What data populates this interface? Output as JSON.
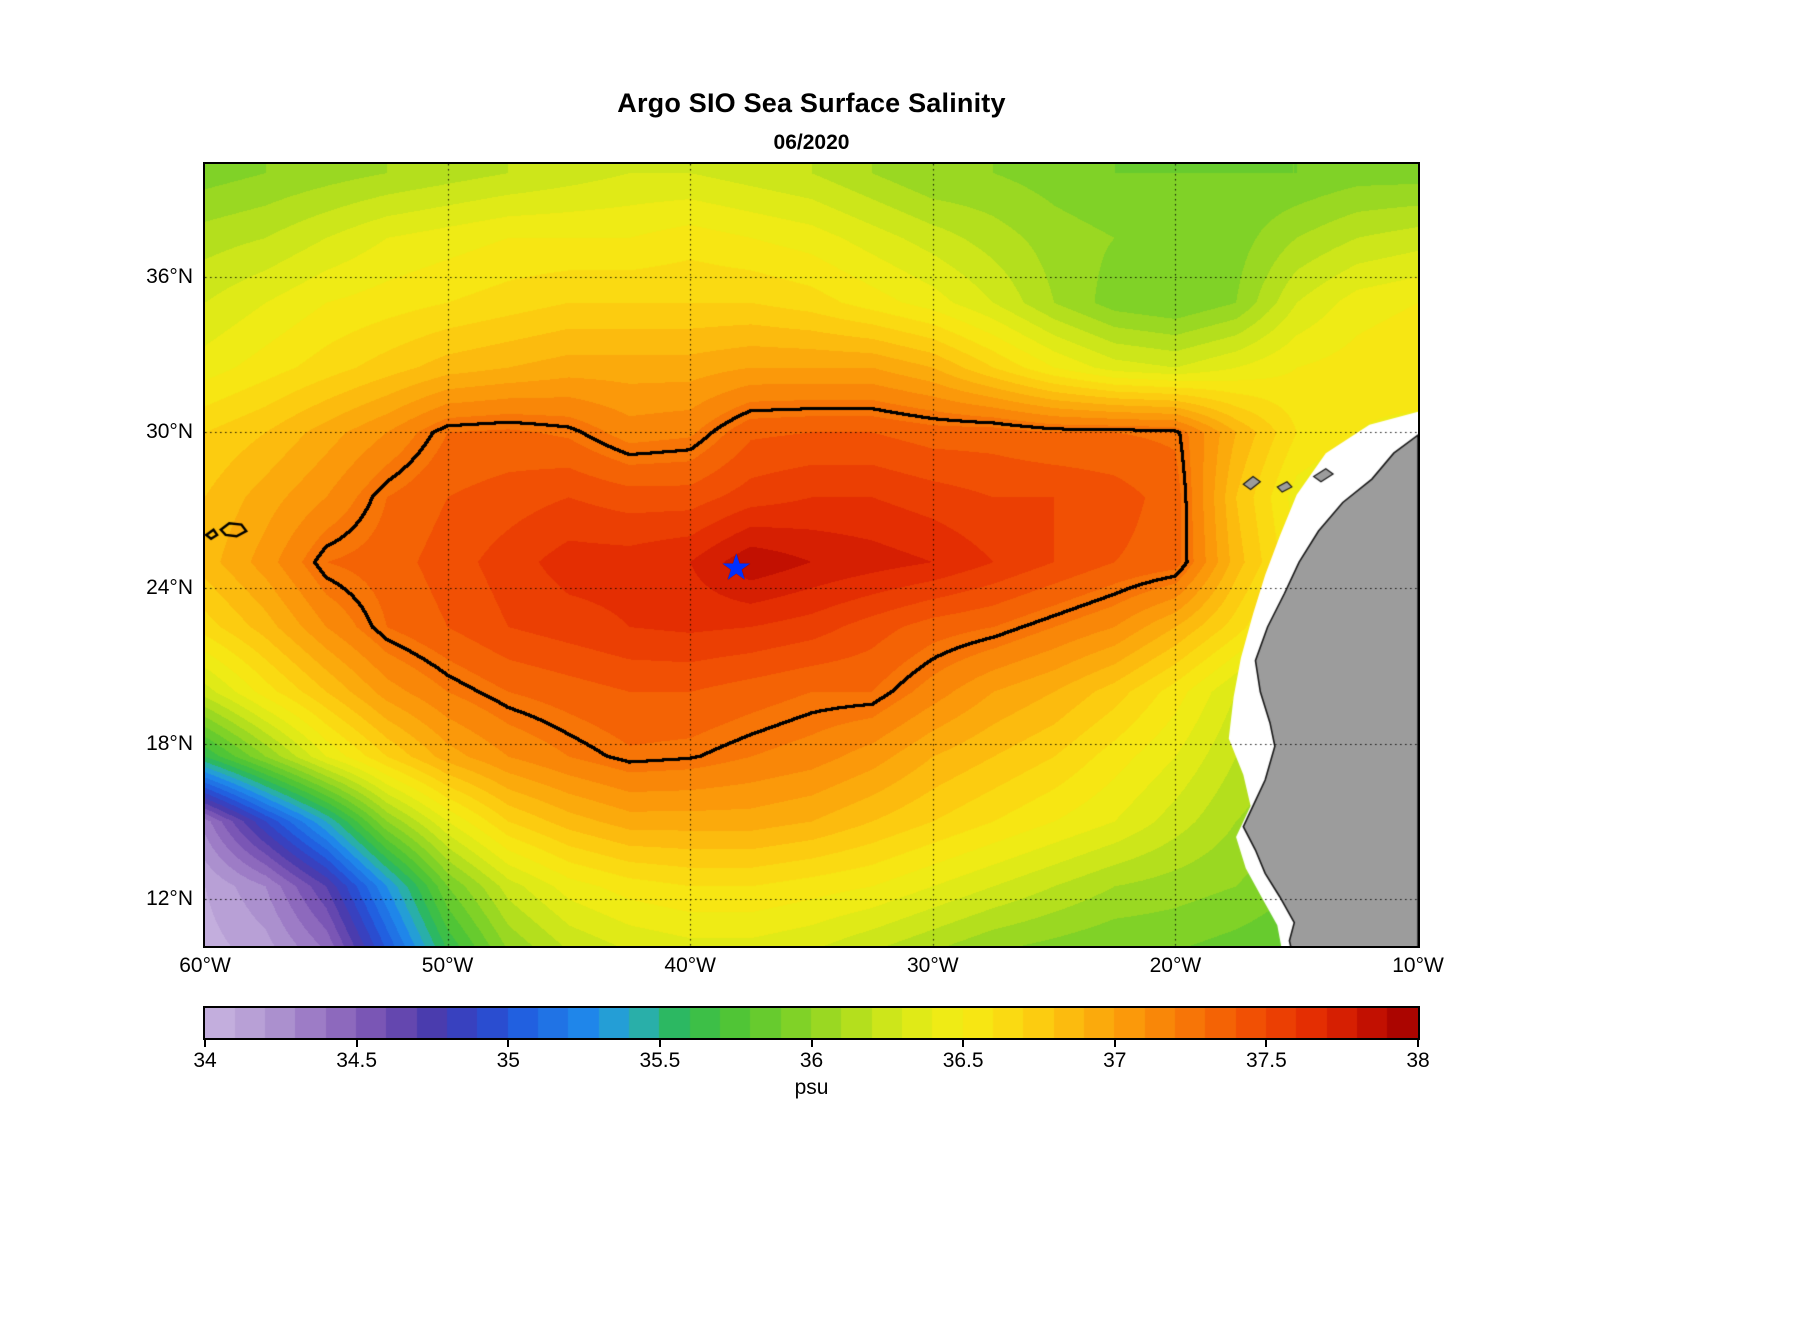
{
  "title": "Argo SIO Sea Surface Salinity",
  "subtitle": "06/2020",
  "colorbar": {
    "label": "psu",
    "min": 34,
    "max": 38,
    "band_step": 0.1,
    "ticks": [
      {
        "v": 34,
        "label": "34"
      },
      {
        "v": 34.5,
        "label": "34.5"
      },
      {
        "v": 35,
        "label": "35"
      },
      {
        "v": 35.5,
        "label": "35.5"
      },
      {
        "v": 36,
        "label": "36"
      },
      {
        "v": 36.5,
        "label": "36.5"
      },
      {
        "v": 37,
        "label": "37"
      },
      {
        "v": 37.5,
        "label": "37.5"
      },
      {
        "v": 38,
        "label": "38"
      }
    ]
  },
  "axes": {
    "lon_min": -60,
    "lon_max": -10,
    "lat_min": 10.2,
    "lat_max": 40.35,
    "x_ticks": [
      {
        "lon": -60,
        "label": "60°W"
      },
      {
        "lon": -50,
        "label": "50°W"
      },
      {
        "lon": -40,
        "label": "40°W"
      },
      {
        "lon": -30,
        "label": "30°W"
      },
      {
        "lon": -20,
        "label": "20°W"
      },
      {
        "lon": -10,
        "label": "10°W"
      }
    ],
    "y_ticks": [
      {
        "lat": 12,
        "label": "12°N"
      },
      {
        "lat": 18,
        "label": "18°N"
      },
      {
        "lat": 24,
        "label": "24°N"
      },
      {
        "lat": 30,
        "label": "30°N"
      },
      {
        "lat": 36,
        "label": "36°N"
      }
    ],
    "grid_lons": [
      -50,
      -40,
      -30,
      -20
    ],
    "grid_lats": [
      12,
      18,
      24,
      30,
      36
    ]
  },
  "chart_data": {
    "type": "heatmap",
    "title": "Argo SIO Sea Surface Salinity",
    "subtitle": "06/2020",
    "units": "psu",
    "value_range": [
      34,
      38
    ],
    "contour_level": 37.25,
    "lon_grid": [
      -60,
      -57.5,
      -55,
      -52.5,
      -50,
      -47.5,
      -45,
      -42.5,
      -40,
      -37.5,
      -35,
      -32.5,
      -30,
      -27.5,
      -25,
      -22.5,
      -20,
      -17.5,
      -15,
      -12.5,
      -10
    ],
    "lat_grid": [
      40,
      37.5,
      35,
      32.5,
      30,
      27.5,
      25,
      22.5,
      20,
      17.5,
      15,
      12.5,
      10
    ],
    "salinity_psu": [
      [
        35.95,
        36.0,
        36.05,
        36.1,
        36.15,
        36.2,
        36.25,
        36.3,
        36.3,
        36.25,
        36.2,
        36.1,
        36.0,
        36.0,
        35.95,
        35.9,
        35.9,
        35.9,
        35.9,
        35.95,
        35.95
      ],
      [
        36.15,
        36.2,
        36.3,
        36.4,
        36.45,
        36.5,
        36.5,
        36.5,
        36.55,
        36.5,
        36.45,
        36.35,
        36.25,
        36.15,
        36.05,
        36.0,
        35.9,
        35.95,
        36.1,
        36.2,
        36.25
      ],
      [
        36.3,
        36.4,
        36.5,
        36.55,
        36.6,
        36.65,
        36.7,
        36.7,
        36.7,
        36.7,
        36.65,
        36.55,
        36.45,
        36.3,
        36.1,
        35.95,
        35.9,
        36.0,
        36.3,
        36.45,
        36.5
      ],
      [
        36.45,
        36.55,
        36.65,
        36.75,
        36.85,
        36.9,
        36.95,
        36.95,
        36.95,
        37.0,
        37.0,
        37.0,
        36.9,
        36.7,
        36.5,
        36.35,
        36.3,
        36.4,
        36.5,
        36.55,
        36.6
      ],
      [
        36.7,
        36.8,
        36.95,
        37.1,
        37.3,
        37.32,
        37.28,
        37.15,
        37.18,
        37.38,
        37.4,
        37.4,
        37.35,
        37.35,
        37.3,
        37.3,
        37.28,
        36.9,
        36.6,
        36.5,
        36.45
      ],
      [
        36.8,
        36.95,
        37.1,
        37.3,
        37.4,
        37.45,
        37.5,
        37.45,
        37.45,
        37.55,
        37.6,
        37.6,
        37.55,
        37.5,
        37.5,
        37.45,
        37.35,
        36.8,
        36.45,
        36.35,
        36.3
      ],
      [
        36.85,
        37.05,
        37.3,
        37.35,
        37.45,
        37.55,
        37.65,
        37.65,
        37.7,
        37.88,
        37.8,
        37.75,
        37.7,
        37.6,
        37.5,
        37.4,
        37.35,
        36.85,
        36.5,
        36.3,
        36.2
      ],
      [
        36.65,
        36.85,
        37.1,
        37.3,
        37.4,
        37.5,
        37.55,
        37.6,
        37.62,
        37.6,
        37.55,
        37.45,
        37.35,
        37.3,
        37.2,
        37.1,
        36.9,
        36.65,
        36.35,
        36.2,
        36.1
      ],
      [
        36.25,
        36.55,
        36.8,
        37.05,
        37.2,
        37.3,
        37.35,
        37.4,
        37.4,
        37.35,
        37.3,
        37.3,
        37.15,
        37.0,
        36.9,
        36.75,
        36.55,
        36.3,
        36.15,
        36.0,
        35.95
      ],
      [
        35.6,
        36.0,
        36.4,
        36.7,
        36.95,
        37.1,
        37.2,
        37.28,
        37.26,
        37.2,
        37.15,
        37.05,
        36.9,
        36.8,
        36.7,
        36.55,
        36.4,
        36.2,
        36.05,
        35.95,
        35.9
      ],
      [
        34.35,
        34.9,
        35.4,
        36.0,
        36.4,
        36.7,
        36.85,
        36.95,
        36.95,
        36.95,
        36.9,
        36.8,
        36.7,
        36.6,
        36.5,
        36.4,
        36.25,
        36.1,
        36.0,
        35.9,
        35.85
      ],
      [
        34.1,
        34.3,
        34.7,
        35.3,
        35.9,
        36.25,
        36.45,
        36.55,
        36.6,
        36.6,
        36.55,
        36.5,
        36.4,
        36.3,
        36.2,
        36.1,
        36.05,
        36.0,
        35.9,
        35.85,
        35.8
      ],
      [
        34.05,
        34.15,
        34.4,
        35.0,
        35.6,
        36.0,
        36.2,
        36.3,
        36.35,
        36.35,
        36.3,
        36.2,
        36.1,
        36.0,
        35.95,
        35.9,
        35.9,
        35.85,
        35.8,
        35.75,
        35.7
      ]
    ],
    "marker": {
      "glyph": "★",
      "lon": -38.1,
      "lat": 24.75,
      "color": "#0030ff"
    },
    "colormap_stops": [
      {
        "v": 34.0,
        "c": "#c8b5e0"
      },
      {
        "v": 34.2,
        "c": "#b299d2"
      },
      {
        "v": 34.4,
        "c": "#9673c2"
      },
      {
        "v": 34.6,
        "c": "#714cb0"
      },
      {
        "v": 34.75,
        "c": "#4a3cae"
      },
      {
        "v": 34.9,
        "c": "#2f43c8"
      },
      {
        "v": 35.05,
        "c": "#2160e0"
      },
      {
        "v": 35.25,
        "c": "#1f86ea"
      },
      {
        "v": 35.4,
        "c": "#27aacc"
      },
      {
        "v": 35.55,
        "c": "#2cb862"
      },
      {
        "v": 35.7,
        "c": "#45c23a"
      },
      {
        "v": 35.9,
        "c": "#72ce2a"
      },
      {
        "v": 36.1,
        "c": "#a8dc1f"
      },
      {
        "v": 36.3,
        "c": "#d9e918"
      },
      {
        "v": 36.5,
        "c": "#f6ec14"
      },
      {
        "v": 36.7,
        "c": "#fcd411"
      },
      {
        "v": 36.9,
        "c": "#fcb30d"
      },
      {
        "v": 37.1,
        "c": "#fa9009"
      },
      {
        "v": 37.3,
        "c": "#f66c06"
      },
      {
        "v": 37.5,
        "c": "#ef4703"
      },
      {
        "v": 37.7,
        "c": "#e02602"
      },
      {
        "v": 37.85,
        "c": "#c21001"
      },
      {
        "v": 38.0,
        "c": "#a00000"
      }
    ],
    "land_color": "#9c9c9c",
    "coast_color": "#1a1a1a",
    "nodata_color": "#ffffff",
    "nodata_polygon": [
      [
        -10,
        30.8
      ],
      [
        -12.0,
        30.3
      ],
      [
        -13.8,
        29.2
      ],
      [
        -15.0,
        27.6
      ],
      [
        -15.7,
        26.0
      ],
      [
        -16.3,
        24.5
      ],
      [
        -16.8,
        23.0
      ],
      [
        -17.3,
        21.3
      ],
      [
        -17.6,
        19.8
      ],
      [
        -17.8,
        18.2
      ],
      [
        -17.2,
        16.8
      ],
      [
        -16.9,
        15.6
      ],
      [
        -17.5,
        14.4
      ],
      [
        -17.1,
        13.2
      ],
      [
        -16.4,
        12.0
      ],
      [
        -15.8,
        11.0
      ],
      [
        -15.6,
        10.0
      ],
      [
        -10,
        10.0
      ]
    ],
    "land_polygons": {
      "africa": [
        [
          -10,
          29.9
        ],
        [
          -11.0,
          29.2
        ],
        [
          -11.9,
          28.2
        ],
        [
          -13.1,
          27.3
        ],
        [
          -14.1,
          26.2
        ],
        [
          -14.9,
          25.0
        ],
        [
          -15.5,
          23.8
        ],
        [
          -16.2,
          22.5
        ],
        [
          -16.7,
          21.2
        ],
        [
          -16.5,
          20.0
        ],
        [
          -16.1,
          18.8
        ],
        [
          -15.9,
          17.9
        ],
        [
          -16.3,
          16.6
        ],
        [
          -16.9,
          15.4
        ],
        [
          -17.2,
          14.8
        ],
        [
          -16.7,
          13.9
        ],
        [
          -16.3,
          13.0
        ],
        [
          -15.7,
          12.1
        ],
        [
          -15.1,
          11.1
        ],
        [
          -15.3,
          10.4
        ],
        [
          -15.2,
          10.0
        ],
        [
          -10,
          10.0
        ]
      ],
      "canary_islands": [
        [
          [
            -17.2,
            28.0
          ],
          [
            -16.8,
            28.3
          ],
          [
            -16.5,
            28.1
          ],
          [
            -16.9,
            27.8
          ]
        ],
        [
          [
            -15.8,
            27.9
          ],
          [
            -15.4,
            28.1
          ],
          [
            -15.2,
            27.9
          ],
          [
            -15.6,
            27.7
          ]
        ],
        [
          [
            -14.3,
            28.3
          ],
          [
            -13.8,
            28.6
          ],
          [
            -13.5,
            28.4
          ],
          [
            -14.0,
            28.1
          ]
        ]
      ]
    },
    "extra_contour_loops": [
      [
        [
          -59.35,
          26.25
        ],
        [
          -59.0,
          26.5
        ],
        [
          -58.5,
          26.45
        ],
        [
          -58.3,
          26.2
        ],
        [
          -58.7,
          26.0
        ],
        [
          -59.15,
          26.05
        ]
      ],
      [
        [
          -59.95,
          26.05
        ],
        [
          -59.65,
          26.25
        ],
        [
          -59.5,
          26.05
        ],
        [
          -59.75,
          25.9
        ]
      ]
    ]
  }
}
